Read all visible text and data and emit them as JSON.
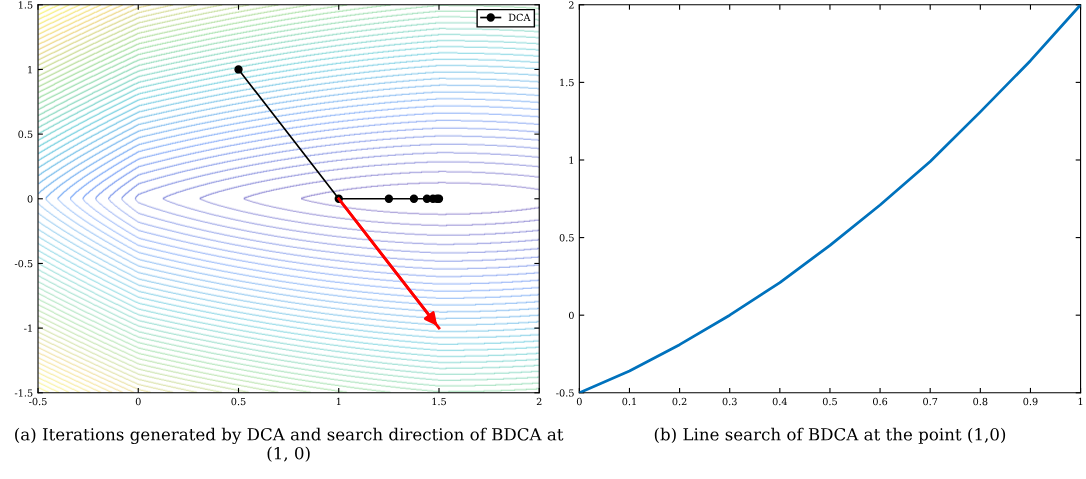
{
  "chart_data": [
    {
      "type": "line",
      "annotations": [
        "(a) Iterations generated by DCA and search direction of BDCA at (1, 0)"
      ],
      "xlim": [
        -0.5,
        2
      ],
      "ylim": [
        -1.5,
        1.5
      ],
      "xticks": [
        -0.5,
        0,
        0.5,
        1,
        1.5,
        2
      ],
      "yticks": [
        -1.5,
        -1,
        -0.5,
        0,
        0.5,
        1,
        1.5
      ],
      "grid": false,
      "legend": "top right",
      "series": [
        {
          "name": "DCA",
          "color": "#000000",
          "marker": "circle",
          "x": [
            0.5,
            1,
            1.25,
            1.375,
            1.44,
            1.47,
            1.49,
            1.5
          ],
          "values": [
            1,
            0,
            0,
            0,
            0,
            0,
            0,
            0
          ]
        },
        {
          "type": "line",
          "marker": "none",
          "color": "#ff0000",
          "x": [
            1,
            1.5
          ],
          "values": [
            0,
            -1
          ]
        }
      ]
    },
    {
      "type": "line",
      "annotations": [
        "(b) Line search of BDCA at the point (1,0)"
      ],
      "xlim": [
        0,
        1
      ],
      "ylim": [
        -0.5,
        2
      ],
      "xticks": [
        0,
        0.1,
        0.2,
        0.3,
        0.4,
        0.5,
        0.6,
        0.7,
        0.8,
        0.9,
        1
      ],
      "yticks": [
        -0.5,
        0,
        0.5,
        1,
        1.5,
        2
      ],
      "grid": false,
      "series": [
        {
          "color": "#0072bd",
          "x": [
            0,
            0.1,
            0.2,
            0.3,
            0.4,
            0.5,
            0.6,
            0.7,
            0.8,
            0.9,
            1
          ],
          "values": [
            -0.5,
            -0.36,
            -0.19,
            0.0,
            0.21,
            0.45,
            0.71,
            0.99,
            1.31,
            1.64,
            2.0
          ]
        }
      ]
    }
  ]
}
